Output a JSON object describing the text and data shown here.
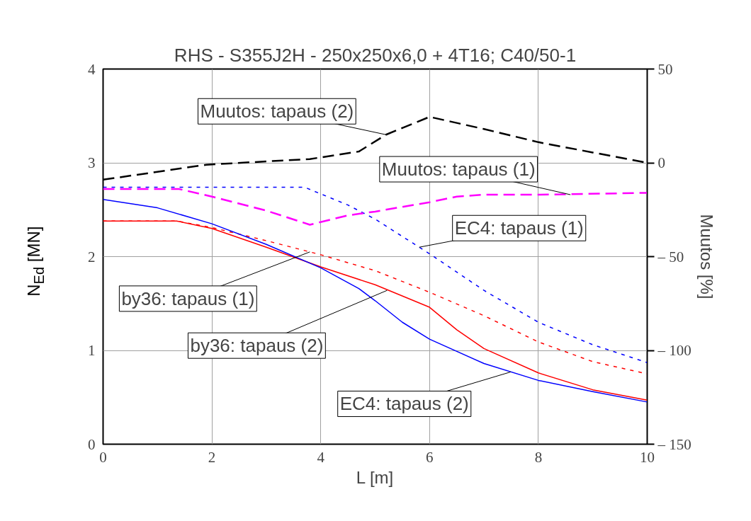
{
  "chart_data": {
    "type": "line",
    "title": "RHS - S355J2H - 250x250x6,0 + 4T16; C40/50-1",
    "xlabel": "L [m]",
    "ylabel": "N$_{Ed}$ [MN]",
    "y2label": "Muutos [%]",
    "xlim": [
      0,
      10
    ],
    "xticks": [
      0,
      2,
      4,
      6,
      8,
      10
    ],
    "ylim": [
      0,
      4
    ],
    "yticks": [
      0,
      1,
      2,
      3,
      4
    ],
    "y2lim": [
      -150,
      50
    ],
    "y2ticks": [
      50,
      0,
      {
        "value": -50,
        "label": "– 50"
      },
      {
        "value": -100,
        "label": "– 100"
      },
      {
        "value": -150,
        "label": "– 150"
      }
    ],
    "grid": true,
    "series": [
      {
        "color": "#0000ff",
        "line_style": "dotted",
        "x": [
          0,
          3.7,
          4.5,
          5,
          6,
          7,
          8,
          9,
          10
        ],
        "values": [
          2.74,
          2.74,
          2.55,
          2.4,
          2.03,
          1.64,
          1.3,
          1.06,
          0.87
        ]
      },
      {
        "color": "#ff0000",
        "line_style": "dotted",
        "x": [
          0,
          1.35,
          2,
          3,
          4,
          5,
          6,
          7,
          8,
          9,
          10
        ],
        "values": [
          2.38,
          2.38,
          2.31,
          2.17,
          2.02,
          1.85,
          1.62,
          1.37,
          1.09,
          0.88,
          0.75
        ]
      },
      {
        "color": "#ff0000",
        "line_style": "solid",
        "x": [
          0,
          1.35,
          2,
          3,
          4,
          5,
          6,
          6.5,
          7,
          8,
          9,
          10
        ],
        "values": [
          2.38,
          2.38,
          2.3,
          2.1,
          1.89,
          1.7,
          1.46,
          1.22,
          1.02,
          0.76,
          0.58,
          0.47
        ]
      },
      {
        "color": "#0000ff",
        "line_style": "solid",
        "x": [
          0,
          1,
          2,
          3,
          4,
          4.7,
          5,
          5.5,
          6,
          7,
          8,
          9,
          10
        ],
        "values": [
          2.61,
          2.52,
          2.35,
          2.13,
          1.88,
          1.66,
          1.53,
          1.3,
          1.12,
          0.86,
          0.68,
          0.56,
          0.45
        ]
      },
      {
        "color": "#000000",
        "line_style": "dashed",
        "axis": "y2",
        "x": [
          0,
          1.9,
          3.8,
          4.7,
          5.2,
          6,
          7,
          8,
          9,
          10
        ],
        "values": [
          -9,
          -1,
          2,
          6,
          15,
          24.5,
          18,
          11,
          5.5,
          0
        ]
      },
      {
        "color": "#ff00ff",
        "line_style": "dashed",
        "axis": "y2",
        "x": [
          0,
          1.4,
          2,
          3,
          3.8,
          4.5,
          5,
          6,
          6.5,
          7,
          8,
          10
        ],
        "values": [
          -14,
          -14,
          -18,
          -25.5,
          -33,
          -28,
          -26,
          -21,
          -18,
          -17,
          -17,
          -16
        ]
      }
    ],
    "annotations": [
      {
        "text": "Muutos: tapaus (2)",
        "x": 5.2,
        "y": 3.3
      },
      {
        "text": "Muutos: tapaus (1)",
        "x": 8.59,
        "y": 2.66
      },
      {
        "text": "EC4: tapaus (1)",
        "x": 5.81,
        "y": 2.1
      },
      {
        "text": "by36: tapaus (1)",
        "x": 3.8,
        "y": 2.05
      },
      {
        "text": "by36: tapaus (2)",
        "x": 5.22,
        "y": 1.64
      },
      {
        "text": "EC4: tapaus (2)",
        "x": 7.49,
        "y": 0.77
      }
    ]
  }
}
